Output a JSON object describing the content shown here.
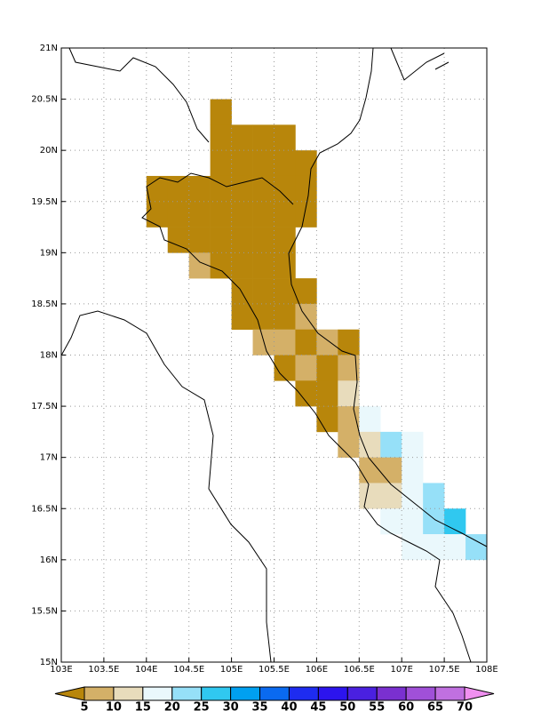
{
  "chart_data": {
    "type": "grid",
    "xlim": [
      103,
      108
    ],
    "ylim": [
      15,
      21
    ],
    "xticks": [
      {
        "value": 103,
        "label": "103E"
      },
      {
        "value": 103.5,
        "label": "103.5E"
      },
      {
        "value": 104,
        "label": "104E"
      },
      {
        "value": 104.5,
        "label": "104.5E"
      },
      {
        "value": 105,
        "label": "105E"
      },
      {
        "value": 105.5,
        "label": "105.5E"
      },
      {
        "value": 106,
        "label": "106E"
      },
      {
        "value": 106.5,
        "label": "106.5E"
      },
      {
        "value": 107,
        "label": "107E"
      },
      {
        "value": 107.5,
        "label": "107.5E"
      },
      {
        "value": 108,
        "label": "108E"
      }
    ],
    "yticks": [
      {
        "value": 15,
        "label": "15N"
      },
      {
        "value": 15.5,
        "label": "15.5N"
      },
      {
        "value": 16,
        "label": "16N"
      },
      {
        "value": 16.5,
        "label": "16.5N"
      },
      {
        "value": 17,
        "label": "17N"
      },
      {
        "value": 17.5,
        "label": "17.5N"
      },
      {
        "value": 18,
        "label": "18N"
      },
      {
        "value": 18.5,
        "label": "18.5N"
      },
      {
        "value": 19,
        "label": "19N"
      },
      {
        "value": 19.5,
        "label": "19.5N"
      },
      {
        "value": 20,
        "label": "20N"
      },
      {
        "value": 20.5,
        "label": "20.5N"
      },
      {
        "value": 21,
        "label": "21N"
      }
    ],
    "grid": true,
    "cell_size": 0.25,
    "cells": [
      [
        104.75,
        20.25,
        3
      ],
      [
        104.75,
        20,
        3
      ],
      [
        105,
        20,
        3
      ],
      [
        105.25,
        20,
        3
      ],
      [
        105.5,
        20,
        3
      ],
      [
        104.75,
        19.75,
        3
      ],
      [
        105,
        19.75,
        3
      ],
      [
        105.25,
        19.75,
        3
      ],
      [
        105.5,
        19.75,
        3
      ],
      [
        105.75,
        19.75,
        3
      ],
      [
        104,
        19.5,
        3
      ],
      [
        104.25,
        19.5,
        3
      ],
      [
        104.5,
        19.5,
        3
      ],
      [
        104.75,
        19.5,
        3
      ],
      [
        105,
        19.5,
        3
      ],
      [
        105.25,
        19.5,
        3
      ],
      [
        105.5,
        19.5,
        3
      ],
      [
        105.75,
        19.5,
        3
      ],
      [
        104,
        19.25,
        3
      ],
      [
        104.25,
        19.25,
        3
      ],
      [
        104.5,
        19.25,
        3
      ],
      [
        104.75,
        19.25,
        3
      ],
      [
        105,
        19.25,
        3
      ],
      [
        105.25,
        19.25,
        3
      ],
      [
        105.5,
        19.25,
        3
      ],
      [
        105.75,
        19.25,
        3
      ],
      [
        104.25,
        19,
        3
      ],
      [
        104.5,
        19,
        3
      ],
      [
        104.75,
        19,
        3
      ],
      [
        105,
        19,
        3
      ],
      [
        105.25,
        19,
        3
      ],
      [
        105.5,
        19,
        3
      ],
      [
        104.5,
        18.75,
        8
      ],
      [
        104.75,
        18.75,
        3
      ],
      [
        105,
        18.75,
        3
      ],
      [
        105.25,
        18.75,
        3
      ],
      [
        105.5,
        18.75,
        3
      ],
      [
        105,
        18.5,
        3
      ],
      [
        105.25,
        18.5,
        3
      ],
      [
        105.5,
        18.5,
        3
      ],
      [
        105.75,
        18.5,
        3
      ],
      [
        105,
        18.25,
        3
      ],
      [
        105.25,
        18.25,
        3
      ],
      [
        105.5,
        18.25,
        3
      ],
      [
        105.75,
        18.25,
        8
      ],
      [
        105.25,
        18,
        8
      ],
      [
        105.5,
        18,
        8
      ],
      [
        105.75,
        18,
        3
      ],
      [
        106,
        18,
        8
      ],
      [
        106.25,
        18,
        3
      ],
      [
        105.5,
        17.75,
        3
      ],
      [
        105.75,
        17.75,
        8
      ],
      [
        106,
        17.75,
        3
      ],
      [
        106.25,
        17.75,
        8
      ],
      [
        105.75,
        17.5,
        3
      ],
      [
        106,
        17.5,
        3
      ],
      [
        106.25,
        17.5,
        12
      ],
      [
        106,
        17.25,
        3
      ],
      [
        106.25,
        17.25,
        8
      ],
      [
        106.5,
        17.25,
        17
      ],
      [
        106.25,
        17,
        8
      ],
      [
        106.5,
        17,
        12
      ],
      [
        106.75,
        17,
        22
      ],
      [
        107,
        17,
        17
      ],
      [
        106.5,
        16.75,
        8
      ],
      [
        106.75,
        16.75,
        8
      ],
      [
        107,
        16.75,
        17
      ],
      [
        106.5,
        16.5,
        12
      ],
      [
        106.75,
        16.5,
        12
      ],
      [
        107,
        16.5,
        17
      ],
      [
        107.25,
        16.5,
        22
      ],
      [
        106.75,
        16.25,
        17
      ],
      [
        107,
        16.25,
        17
      ],
      [
        107.25,
        16.25,
        22
      ],
      [
        107.5,
        16.25,
        27
      ],
      [
        107,
        16,
        17
      ],
      [
        107.25,
        16,
        17
      ],
      [
        107.5,
        16,
        17
      ],
      [
        107.75,
        16,
        22
      ]
    ],
    "colorbar": {
      "levels": [
        5,
        10,
        15,
        20,
        25,
        30,
        35,
        40,
        45,
        50,
        55,
        60,
        65,
        70
      ],
      "colors": [
        "#b8860b",
        "#d4b068",
        "#e8dcbc",
        "#eaf8fc",
        "#96e0f8",
        "#30c8f0",
        "#00a0f0",
        "#0a6af0",
        "#1e2cf0",
        "#2c14ee",
        "#4a20e0",
        "#7a30d0",
        "#a050d8",
        "#c070e0",
        "#f090f0"
      ]
    }
  }
}
